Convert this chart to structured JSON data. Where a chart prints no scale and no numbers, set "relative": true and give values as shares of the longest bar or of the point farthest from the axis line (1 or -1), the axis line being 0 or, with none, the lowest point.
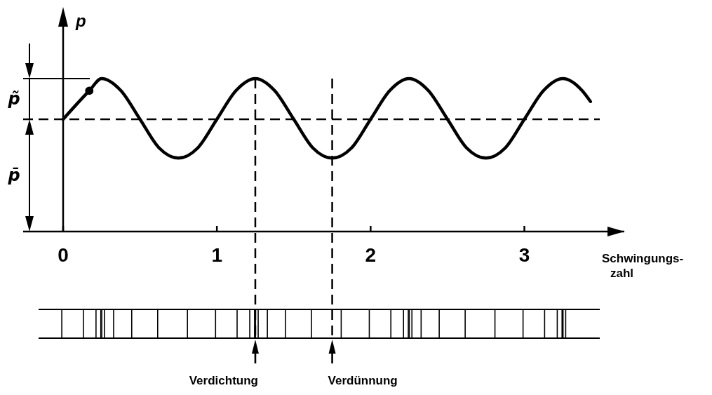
{
  "chart_data": {
    "type": "line",
    "relative": true,
    "xlabel": "Schwingungs-\nzahl",
    "ylabel": "p",
    "xlim": [
      -0.26,
      3.65
    ],
    "xticks": [
      0,
      1,
      2,
      3
    ],
    "annotations": [
      "p̃",
      "p̄",
      "Verdichtung",
      "Verdünnung"
    ],
    "ref_lines": [
      {
        "axis": "y",
        "value": 0.734,
        "line_style": "dashed"
      },
      {
        "axis": "x",
        "value": 1.25,
        "line_style": "dashed"
      },
      {
        "axis": "x",
        "value": 1.75,
        "line_style": "dashed"
      }
    ],
    "series": [
      {
        "color": "#000000",
        "marker": "none",
        "x": [
          0,
          0.17,
          0.25,
          0.375,
          0.5,
          0.625,
          0.75,
          0.875,
          1,
          1.125,
          1.25,
          1.375,
          1.5,
          1.625,
          1.75,
          1.875,
          2,
          2.125,
          2.25,
          2.375,
          2.5,
          2.625,
          2.75,
          2.875,
          3,
          3.125,
          3.25,
          3.375,
          3.43
        ],
        "values": [
          0.734,
          0.92,
          1,
          0.922,
          0.734,
          0.546,
          0.48,
          0.546,
          0.734,
          0.922,
          1,
          0.922,
          0.734,
          0.546,
          0.48,
          0.546,
          0.734,
          0.922,
          1,
          0.922,
          0.734,
          0.546,
          0.48,
          0.546,
          0.734,
          0.922,
          1,
          0.922,
          0.85
        ]
      },
      {
        "type": "scatter",
        "color": "#000000",
        "marker": "circle",
        "x": [
          0.17
        ],
        "values": [
          0.92
        ]
      }
    ]
  }
}
